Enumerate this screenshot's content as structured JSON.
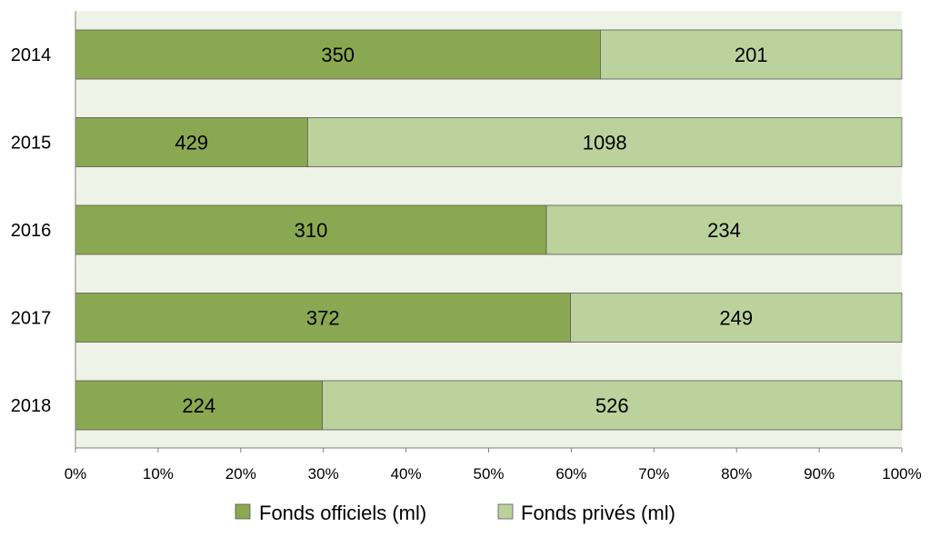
{
  "chart_data": {
    "type": "bar",
    "orientation": "horizontal",
    "stacked": "percent",
    "title": "",
    "xlabel": "",
    "ylabel": "",
    "categories": [
      "2014",
      "2015",
      "2016",
      "2017",
      "2018"
    ],
    "series": [
      {
        "name": "Fonds officiels (ml)",
        "values": [
          350,
          429,
          310,
          372,
          224
        ],
        "color": "#8aa851"
      },
      {
        "name": "Fonds privés (ml)",
        "values": [
          201,
          1098,
          234,
          249,
          526
        ],
        "color": "#bcd29c"
      }
    ],
    "xlim": [
      0,
      100
    ],
    "x_ticks": [
      "0%",
      "10%",
      "20%",
      "30%",
      "40%",
      "50%",
      "60%",
      "70%",
      "80%",
      "90%",
      "100%"
    ],
    "plot_background": "#eff2e6",
    "border_color": "#595959",
    "grid": false,
    "legend_position": "bottom"
  }
}
